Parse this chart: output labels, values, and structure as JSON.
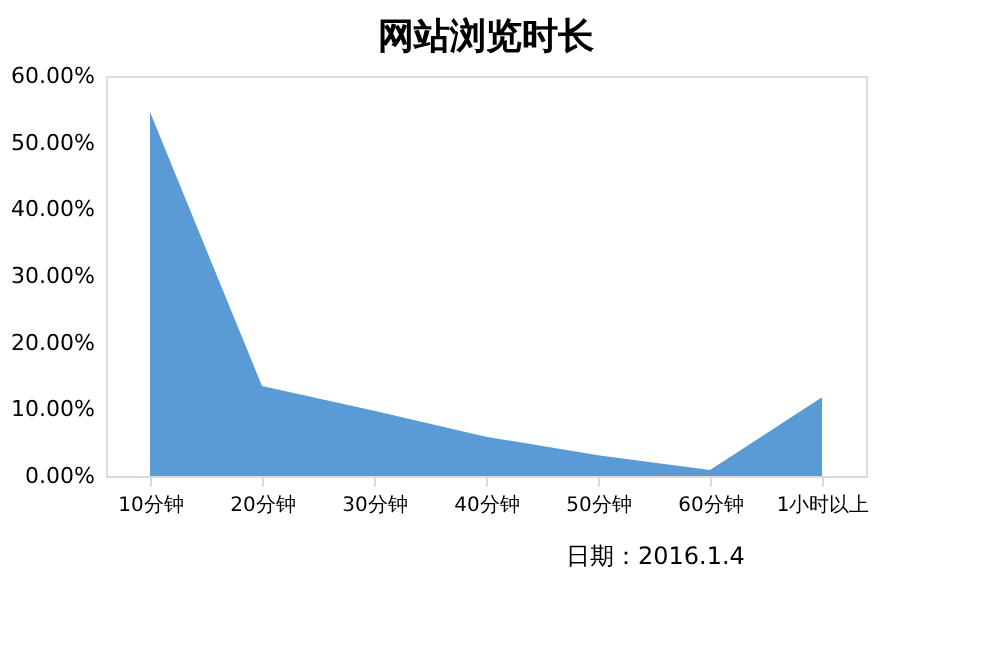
{
  "chart_data": {
    "type": "area",
    "title": "网站浏览时长",
    "categories": [
      "10分钟",
      "20分钟",
      "30分钟",
      "40分钟",
      "50分钟",
      "60分钟",
      "1小时以上"
    ],
    "series": [
      {
        "color": "#5b9bd5",
        "values": [
          54.6,
          13.5,
          9.8,
          5.9,
          3.1,
          0.9,
          11.8
        ]
      }
    ],
    "ylim": [
      0,
      60
    ],
    "yticks": [
      {
        "value": 0,
        "label": "0.00%"
      },
      {
        "value": 10,
        "label": "10.00%"
      },
      {
        "value": 20,
        "label": "20.00%"
      },
      {
        "value": 30,
        "label": "30.00%"
      },
      {
        "value": 40,
        "label": "40.00%"
      },
      {
        "value": 50,
        "label": "50.00%"
      },
      {
        "value": 60,
        "label": "60.00%"
      }
    ],
    "grid": false,
    "annotations": [
      "日期：2016.1.4"
    ]
  }
}
